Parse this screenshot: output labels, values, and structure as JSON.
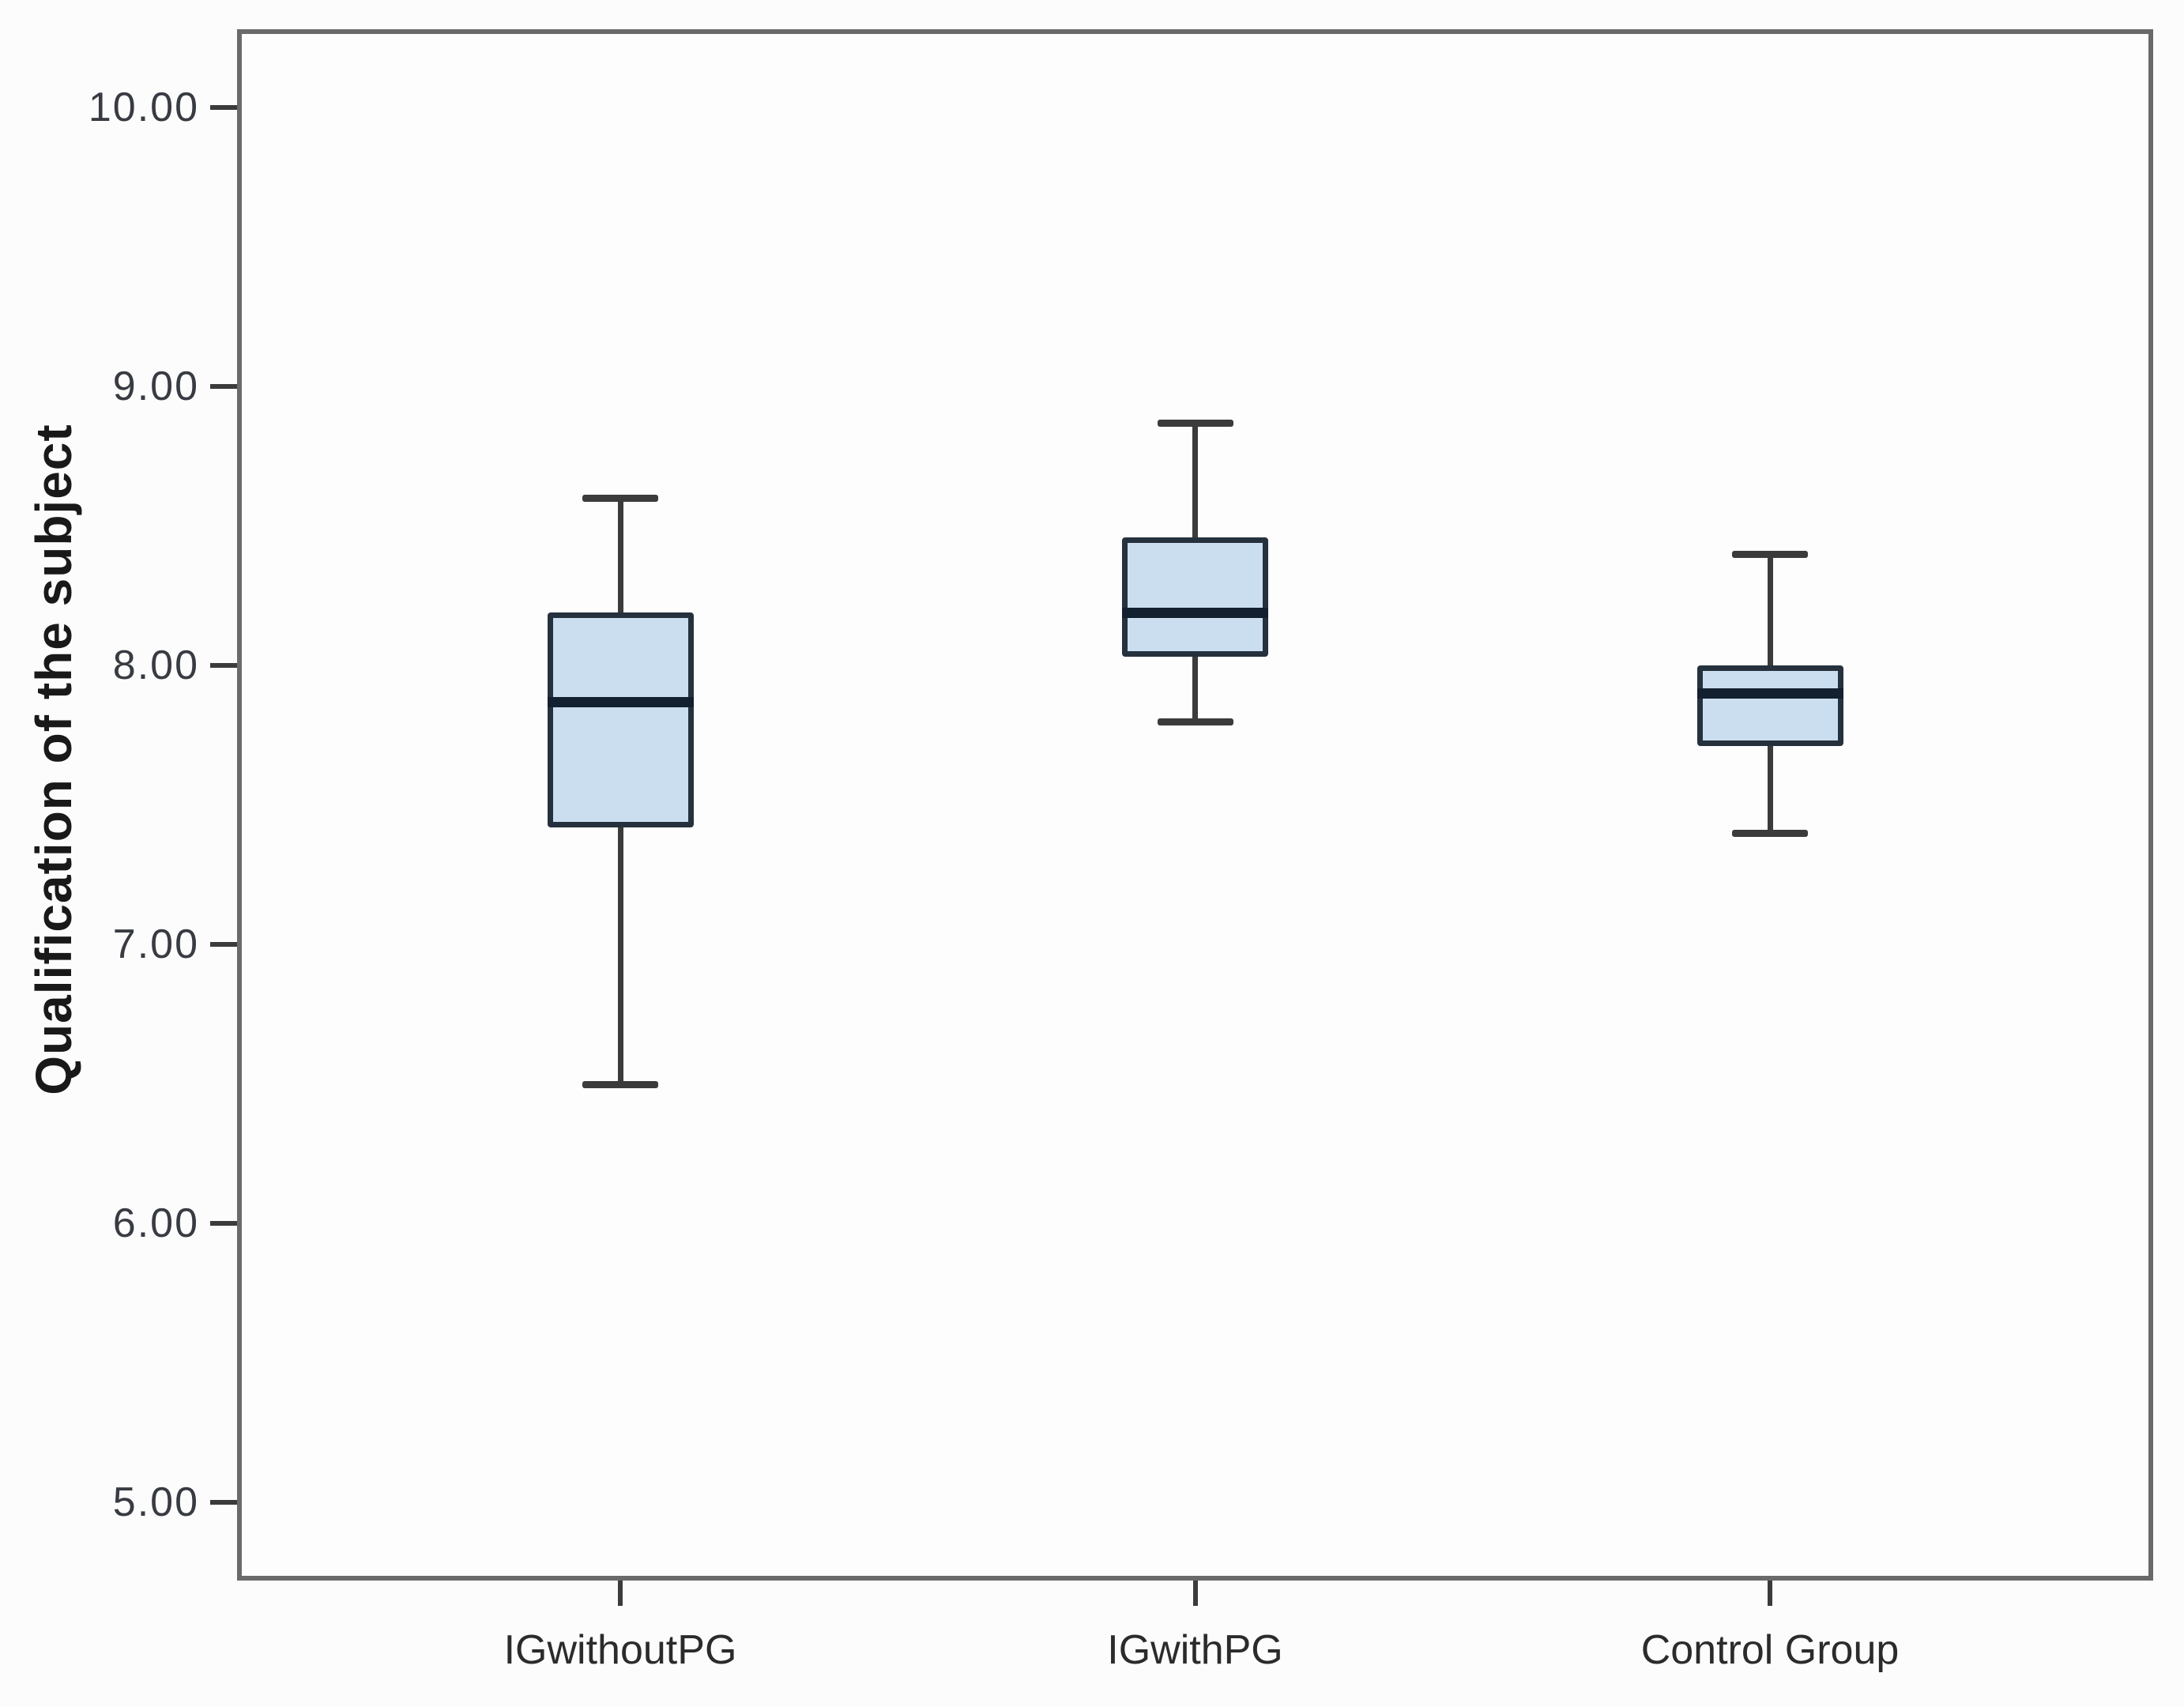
{
  "chart_data": {
    "type": "boxplot",
    "title": "",
    "xlabel": "",
    "ylabel": "Qualification of the subject",
    "categories": [
      "IGwithoutPG",
      "IGwithPG",
      "Control Group"
    ],
    "series": [
      {
        "name": "IGwithoutPG",
        "whisker_low": 6.5,
        "q1": 7.42,
        "median": 7.87,
        "q3": 8.19,
        "whisker_high": 8.6
      },
      {
        "name": "IGwithPG",
        "whisker_low": 7.8,
        "q1": 8.03,
        "median": 8.19,
        "q3": 8.46,
        "whisker_high": 8.87
      },
      {
        "name": "Control Group",
        "whisker_low": 7.4,
        "q1": 7.71,
        "median": 7.9,
        "q3": 8.0,
        "whisker_high": 8.4
      }
    ],
    "yticks": {
      "values": [
        5,
        6,
        7,
        8,
        9,
        10
      ],
      "labels": [
        "5.00",
        "6.00",
        "7.00",
        "8.00",
        "9.00",
        "10.00"
      ]
    },
    "ylim": [
      4.72,
      10.28
    ],
    "grid": false,
    "legend": "none",
    "colors": {
      "box_fill": "#cbdef0",
      "box_border": "#25313d",
      "median": "#132030",
      "whisker": "#3b3b3b",
      "frame": "#6a6a6a",
      "tick_text": "#383b42",
      "axis_title_text": "#191919",
      "background": "#fcfcfc"
    }
  }
}
